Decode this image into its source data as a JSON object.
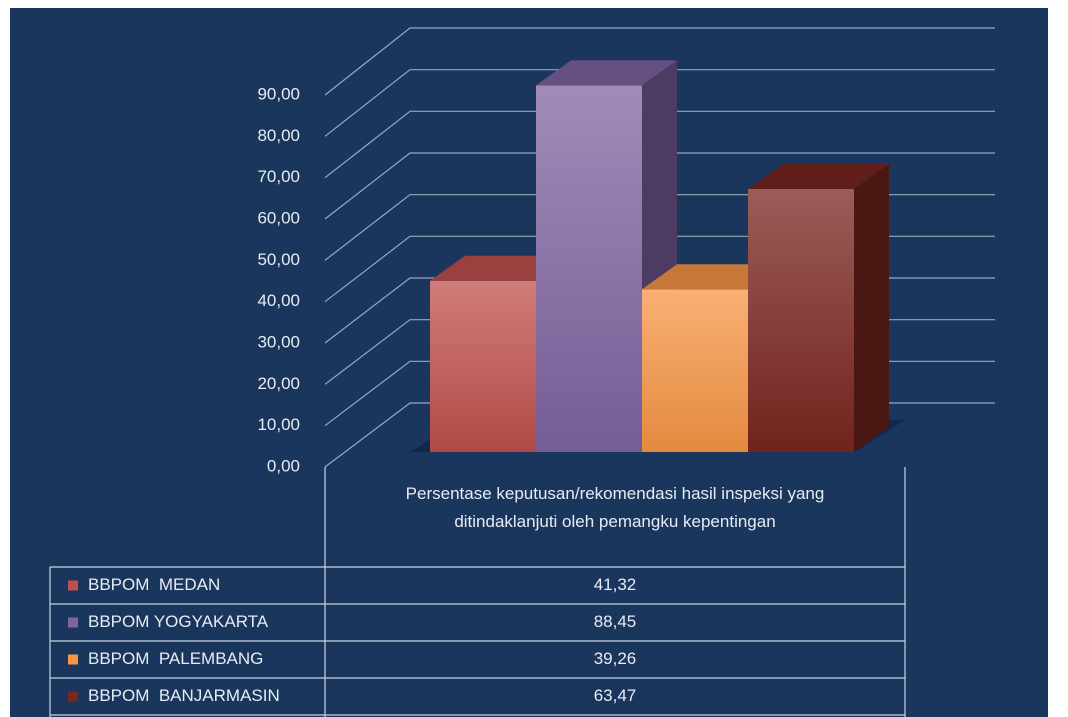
{
  "chart_data": {
    "type": "bar3d",
    "categories": [
      "Persentase keputusan/rekomendasi hasil inspeksi yang ditindaklanjuti oleh pemangku kepentingan"
    ],
    "series": [
      {
        "name": "BBPOM  MEDAN",
        "color": "#c0504d",
        "values": [
          41.32
        ],
        "value_labels": [
          "41,32"
        ]
      },
      {
        "name": "BBPOM YOGYAKARTA",
        "color": "#8064a2",
        "values": [
          88.45
        ],
        "value_labels": [
          "88,45"
        ]
      },
      {
        "name": "BBPOM  PALEMBANG",
        "color": "#f79646",
        "values": [
          39.26
        ],
        "value_labels": [
          "39,26"
        ]
      },
      {
        "name": "BBPOM  BANJARMASIN",
        "color": "#7b2620",
        "values": [
          63.47
        ],
        "value_labels": [
          "63,47"
        ]
      }
    ],
    "ylim": [
      0,
      90
    ],
    "yticks": [
      {
        "value": 0,
        "label": "0,00"
      },
      {
        "value": 10,
        "label": "10,00"
      },
      {
        "value": 20,
        "label": "20,00"
      },
      {
        "value": 30,
        "label": "30,00"
      },
      {
        "value": 40,
        "label": "40,00"
      },
      {
        "value": 50,
        "label": "50,00"
      },
      {
        "value": 60,
        "label": "60,00"
      },
      {
        "value": 70,
        "label": "70,00"
      },
      {
        "value": 80,
        "label": "80,00"
      },
      {
        "value": 90,
        "label": "90,00"
      }
    ],
    "grid": true,
    "data_table": true
  }
}
